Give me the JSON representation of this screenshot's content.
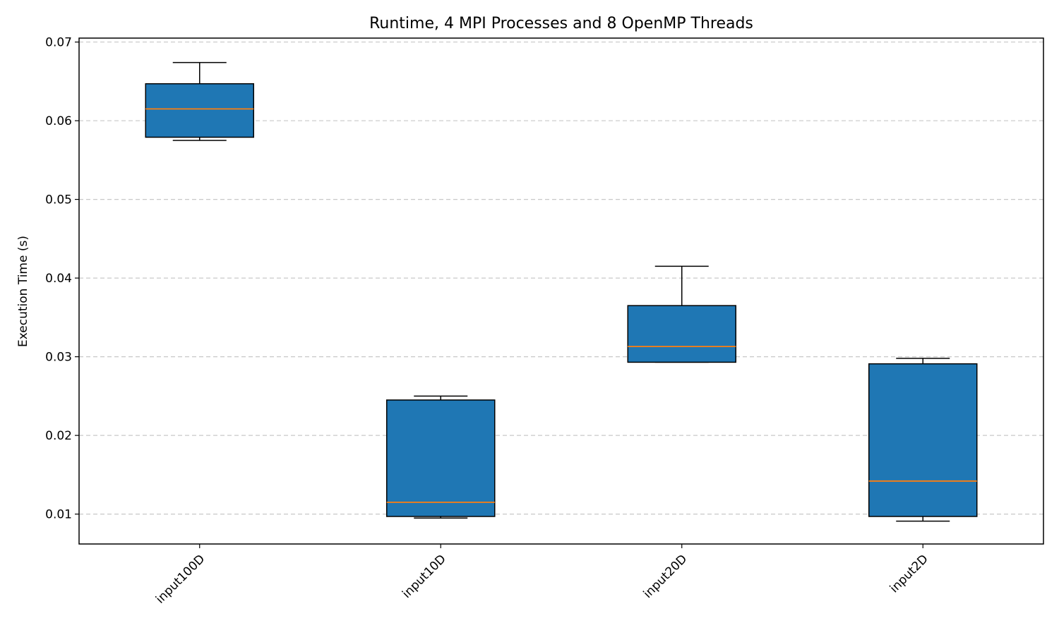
{
  "chart_data": {
    "type": "box",
    "title": "Runtime, 4 MPI Processes and 8 OpenMP Threads",
    "xlabel": "",
    "ylabel": "Execution Time (s)",
    "ylim": [
      0.0062,
      0.0705
    ],
    "yticks": [
      0.01,
      0.02,
      0.03,
      0.04,
      0.05,
      0.06,
      0.07
    ],
    "ytick_labels": [
      "0.01",
      "0.02",
      "0.03",
      "0.04",
      "0.05",
      "0.06",
      "0.07"
    ],
    "grid": {
      "y": true,
      "x": false,
      "style": "dashed"
    },
    "categories": [
      "input100D",
      "input10D",
      "input20D",
      "input2D"
    ],
    "boxes": [
      {
        "category": "input100D",
        "whisker_low": 0.0575,
        "q1": 0.0579,
        "median": 0.0615,
        "q3": 0.0647,
        "whisker_high": 0.0674
      },
      {
        "category": "input10D",
        "whisker_low": 0.0095,
        "q1": 0.0097,
        "median": 0.0115,
        "q3": 0.0245,
        "whisker_high": 0.025
      },
      {
        "category": "input20D",
        "whisker_low": 0.0293,
        "q1": 0.0293,
        "median": 0.0313,
        "q3": 0.0365,
        "whisker_high": 0.0415
      },
      {
        "category": "input2D",
        "whisker_low": 0.0091,
        "q1": 0.0097,
        "median": 0.0142,
        "q3": 0.0291,
        "whisker_high": 0.0298
      }
    ],
    "colors": {
      "box_fill": "#1f77b4",
      "median": "#ff7f0e",
      "grid": "#b0b0b0",
      "stroke": "#000000"
    }
  }
}
